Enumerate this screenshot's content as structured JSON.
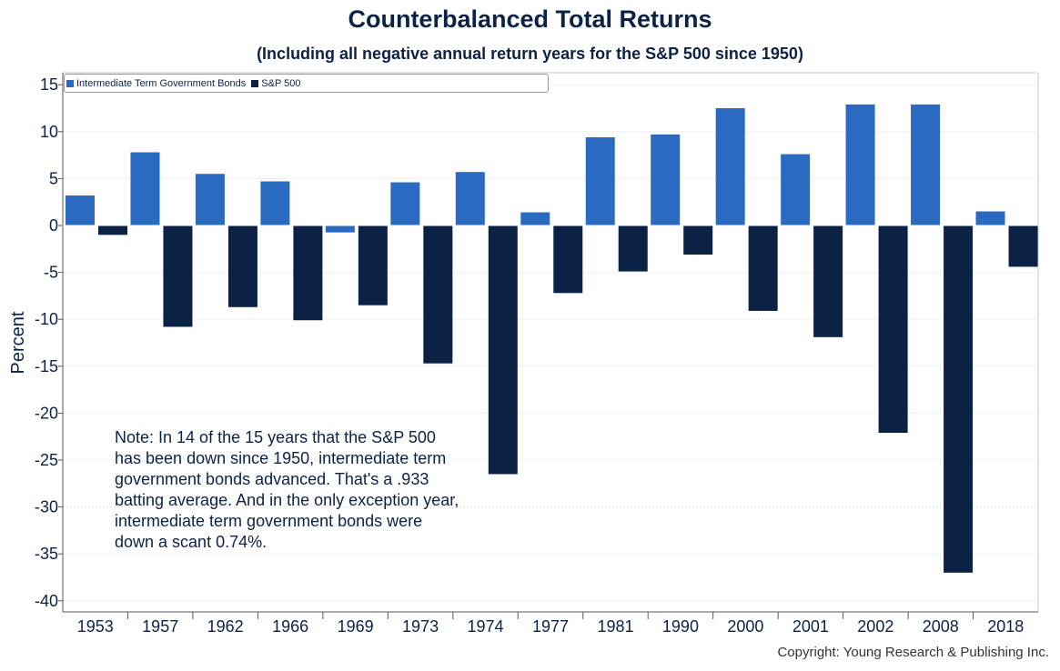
{
  "chart_data": {
    "type": "bar",
    "title": "Counterbalanced Total Returns",
    "subtitle": "(Including all negative annual return years for the S&P 500 since 1950)",
    "ylabel": "Percent",
    "ylim": [
      -41,
      16
    ],
    "yticks": [
      15,
      10,
      5,
      0,
      -5,
      -10,
      -15,
      -20,
      -25,
      -30,
      -35,
      -40
    ],
    "grid": true,
    "legend_position": "top-left",
    "categories": [
      "1953",
      "1957",
      "1962",
      "1966",
      "1969",
      "1973",
      "1974",
      "1977",
      "1981",
      "1990",
      "2000",
      "2001",
      "2002",
      "2008",
      "2018"
    ],
    "series": [
      {
        "name": "Intermediate Term Government Bonds",
        "color": "#2a6bc1",
        "values": [
          3.2,
          7.8,
          5.5,
          4.7,
          -0.74,
          4.6,
          5.7,
          1.4,
          9.4,
          9.7,
          12.5,
          7.6,
          12.9,
          12.9,
          1.5
        ]
      },
      {
        "name": "S&P 500",
        "color": "#0c2245",
        "values": [
          -1.0,
          -10.8,
          -8.7,
          -10.1,
          -8.5,
          -14.7,
          -26.5,
          -7.2,
          -4.9,
          -3.1,
          -9.1,
          -11.9,
          -22.1,
          -37.0,
          -4.4
        ]
      }
    ],
    "annotation": "Note: In 14 of the 15 years that the S&P 500 has been down since 1950, intermediate term government bonds advanced.  That's a .933 batting average. And in the only exception year, intermediate term government bonds were down a scant 0.74%."
  },
  "copyright": "Copyright: Young Research & Publishing Inc."
}
